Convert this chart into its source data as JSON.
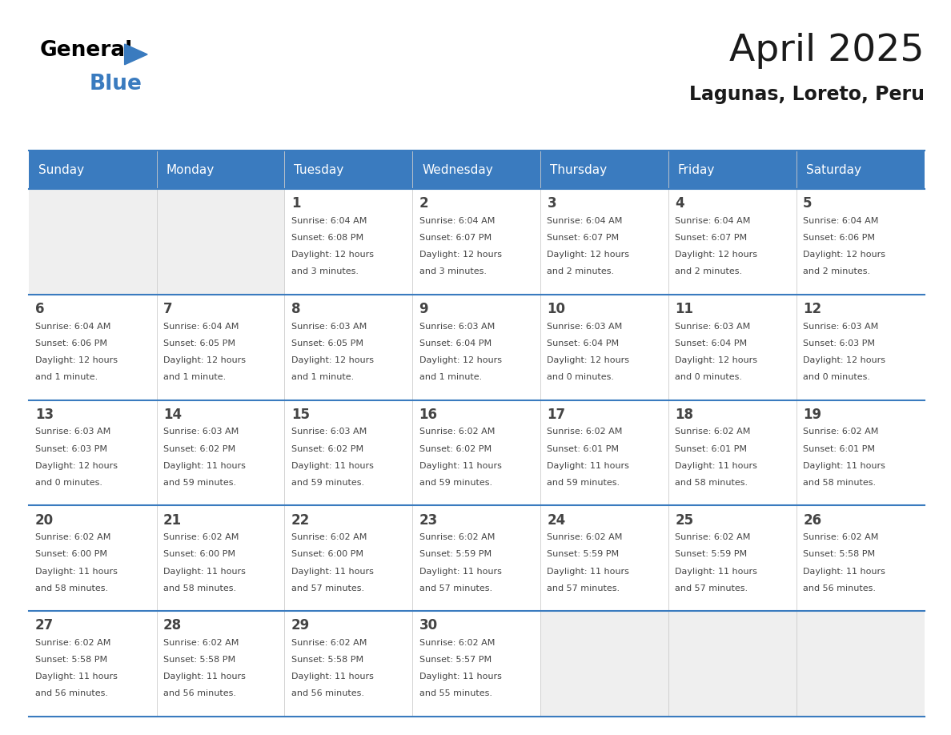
{
  "title": "April 2025",
  "subtitle": "Lagunas, Loreto, Peru",
  "days_of_week": [
    "Sunday",
    "Monday",
    "Tuesday",
    "Wednesday",
    "Thursday",
    "Friday",
    "Saturday"
  ],
  "header_bg": "#3a7bbf",
  "header_text": "#ffffff",
  "cell_bg_empty": "#efefef",
  "cell_bg_white": "#ffffff",
  "separator_color": "#3a7bbf",
  "text_color": "#444444",
  "title_color": "#1a1a1a",
  "weeks": [
    {
      "days": [
        {
          "day": null,
          "sunrise": null,
          "sunset": null,
          "daylight": null
        },
        {
          "day": null,
          "sunrise": null,
          "sunset": null,
          "daylight": null
        },
        {
          "day": 1,
          "sunrise": "6:04 AM",
          "sunset": "6:08 PM",
          "daylight": "12 hours\nand 3 minutes."
        },
        {
          "day": 2,
          "sunrise": "6:04 AM",
          "sunset": "6:07 PM",
          "daylight": "12 hours\nand 3 minutes."
        },
        {
          "day": 3,
          "sunrise": "6:04 AM",
          "sunset": "6:07 PM",
          "daylight": "12 hours\nand 2 minutes."
        },
        {
          "day": 4,
          "sunrise": "6:04 AM",
          "sunset": "6:07 PM",
          "daylight": "12 hours\nand 2 minutes."
        },
        {
          "day": 5,
          "sunrise": "6:04 AM",
          "sunset": "6:06 PM",
          "daylight": "12 hours\nand 2 minutes."
        }
      ]
    },
    {
      "days": [
        {
          "day": 6,
          "sunrise": "6:04 AM",
          "sunset": "6:06 PM",
          "daylight": "12 hours\nand 1 minute."
        },
        {
          "day": 7,
          "sunrise": "6:04 AM",
          "sunset": "6:05 PM",
          "daylight": "12 hours\nand 1 minute."
        },
        {
          "day": 8,
          "sunrise": "6:03 AM",
          "sunset": "6:05 PM",
          "daylight": "12 hours\nand 1 minute."
        },
        {
          "day": 9,
          "sunrise": "6:03 AM",
          "sunset": "6:04 PM",
          "daylight": "12 hours\nand 1 minute."
        },
        {
          "day": 10,
          "sunrise": "6:03 AM",
          "sunset": "6:04 PM",
          "daylight": "12 hours\nand 0 minutes."
        },
        {
          "day": 11,
          "sunrise": "6:03 AM",
          "sunset": "6:04 PM",
          "daylight": "12 hours\nand 0 minutes."
        },
        {
          "day": 12,
          "sunrise": "6:03 AM",
          "sunset": "6:03 PM",
          "daylight": "12 hours\nand 0 minutes."
        }
      ]
    },
    {
      "days": [
        {
          "day": 13,
          "sunrise": "6:03 AM",
          "sunset": "6:03 PM",
          "daylight": "12 hours\nand 0 minutes."
        },
        {
          "day": 14,
          "sunrise": "6:03 AM",
          "sunset": "6:02 PM",
          "daylight": "11 hours\nand 59 minutes."
        },
        {
          "day": 15,
          "sunrise": "6:03 AM",
          "sunset": "6:02 PM",
          "daylight": "11 hours\nand 59 minutes."
        },
        {
          "day": 16,
          "sunrise": "6:02 AM",
          "sunset": "6:02 PM",
          "daylight": "11 hours\nand 59 minutes."
        },
        {
          "day": 17,
          "sunrise": "6:02 AM",
          "sunset": "6:01 PM",
          "daylight": "11 hours\nand 59 minutes."
        },
        {
          "day": 18,
          "sunrise": "6:02 AM",
          "sunset": "6:01 PM",
          "daylight": "11 hours\nand 58 minutes."
        },
        {
          "day": 19,
          "sunrise": "6:02 AM",
          "sunset": "6:01 PM",
          "daylight": "11 hours\nand 58 minutes."
        }
      ]
    },
    {
      "days": [
        {
          "day": 20,
          "sunrise": "6:02 AM",
          "sunset": "6:00 PM",
          "daylight": "11 hours\nand 58 minutes."
        },
        {
          "day": 21,
          "sunrise": "6:02 AM",
          "sunset": "6:00 PM",
          "daylight": "11 hours\nand 58 minutes."
        },
        {
          "day": 22,
          "sunrise": "6:02 AM",
          "sunset": "6:00 PM",
          "daylight": "11 hours\nand 57 minutes."
        },
        {
          "day": 23,
          "sunrise": "6:02 AM",
          "sunset": "5:59 PM",
          "daylight": "11 hours\nand 57 minutes."
        },
        {
          "day": 24,
          "sunrise": "6:02 AM",
          "sunset": "5:59 PM",
          "daylight": "11 hours\nand 57 minutes."
        },
        {
          "day": 25,
          "sunrise": "6:02 AM",
          "sunset": "5:59 PM",
          "daylight": "11 hours\nand 57 minutes."
        },
        {
          "day": 26,
          "sunrise": "6:02 AM",
          "sunset": "5:58 PM",
          "daylight": "11 hours\nand 56 minutes."
        }
      ]
    },
    {
      "days": [
        {
          "day": 27,
          "sunrise": "6:02 AM",
          "sunset": "5:58 PM",
          "daylight": "11 hours\nand 56 minutes."
        },
        {
          "day": 28,
          "sunrise": "6:02 AM",
          "sunset": "5:58 PM",
          "daylight": "11 hours\nand 56 minutes."
        },
        {
          "day": 29,
          "sunrise": "6:02 AM",
          "sunset": "5:58 PM",
          "daylight": "11 hours\nand 56 minutes."
        },
        {
          "day": 30,
          "sunrise": "6:02 AM",
          "sunset": "5:57 PM",
          "daylight": "11 hours\nand 55 minutes."
        },
        {
          "day": null,
          "sunrise": null,
          "sunset": null,
          "daylight": null
        },
        {
          "day": null,
          "sunrise": null,
          "sunset": null,
          "daylight": null
        },
        {
          "day": null,
          "sunrise": null,
          "sunset": null,
          "daylight": null
        }
      ]
    }
  ]
}
